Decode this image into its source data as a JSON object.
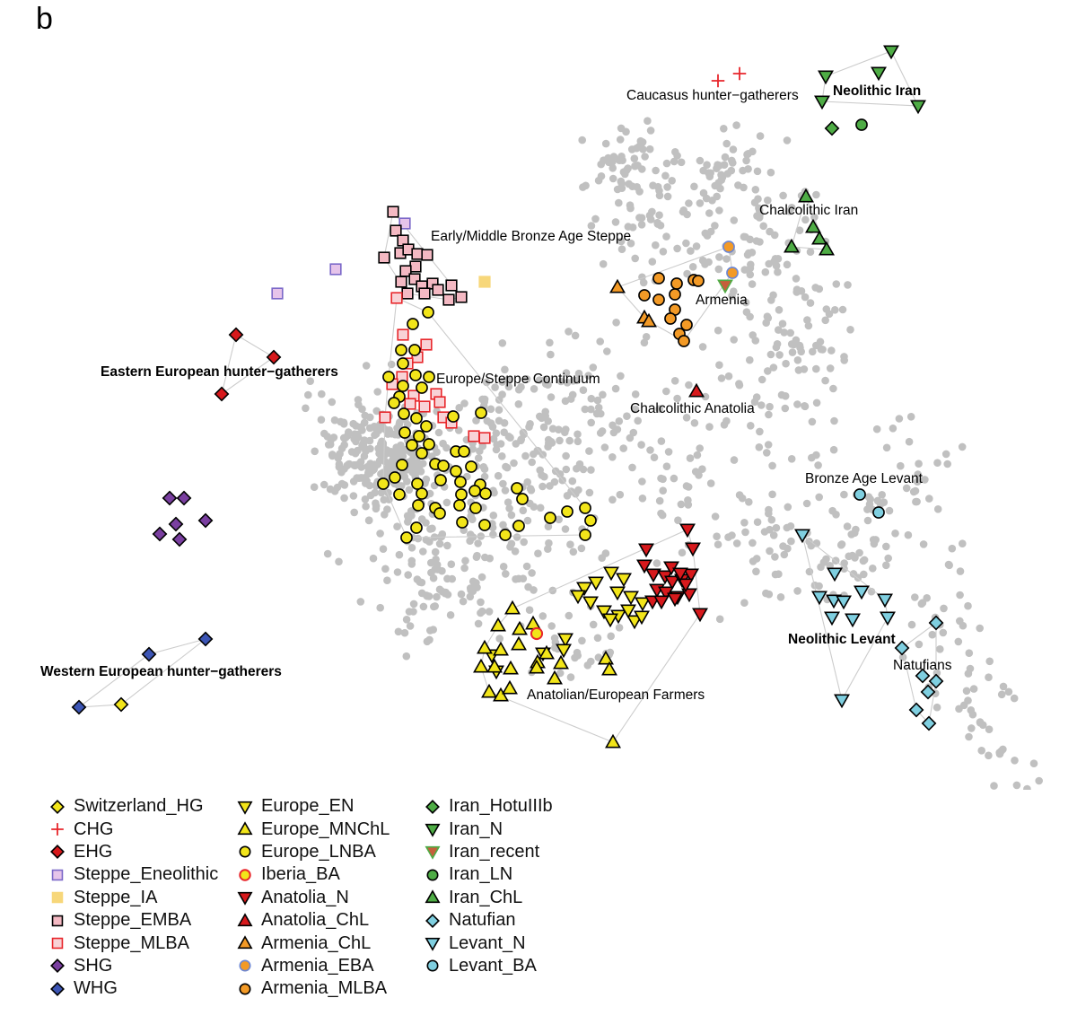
{
  "panel_letter": "b",
  "chart_data": {
    "type": "scatter",
    "title": "",
    "xlabel": "",
    "ylabel": "",
    "grid": false,
    "legend_position": "bottom-left",
    "annotations": [
      {
        "text": "Caucasus hunter−gatherers",
        "bold": false
      },
      {
        "text": "Neolithic Iran",
        "bold": true
      },
      {
        "text": "Chalcolithic Iran",
        "bold": false
      },
      {
        "text": "Early/Middle Bronze Age Steppe",
        "bold": false
      },
      {
        "text": "Armenia",
        "bold": false
      },
      {
        "text": "Eastern European hunter−gatherers",
        "bold": true
      },
      {
        "text": "Europe/Steppe Continuum",
        "bold": false
      },
      {
        "text": "Chalcolithic Anatolia",
        "bold": false
      },
      {
        "text": "Bronze Age Levant",
        "bold": false
      },
      {
        "text": "Neolithic Levant",
        "bold": true
      },
      {
        "text": "Natufians",
        "bold": false
      },
      {
        "text": "Western European hunter−gatherers",
        "bold": true
      },
      {
        "text": "Anatolian/European Farmers",
        "bold": false
      }
    ],
    "series": [
      {
        "name": "Switzerland_HG",
        "shape": "diamond",
        "fill": "#f2e51a",
        "points": [
          [
            135,
            785
          ]
        ]
      },
      {
        "name": "CHG",
        "shape": "plus",
        "fill": "#e8262b",
        "points": [
          [
            800,
            90
          ],
          [
            824,
            82
          ]
        ]
      },
      {
        "name": "EHG",
        "shape": "diamond",
        "fill": "#d7191c",
        "points": [
          [
            263,
            373
          ],
          [
            305,
            398
          ],
          [
            247,
            439
          ]
        ]
      },
      {
        "name": "Steppe_Eneolithic",
        "shape": "square-open",
        "fill": "#e6c4ea",
        "stroke": "#7b68c8",
        "points": [
          [
            309,
            327
          ],
          [
            374,
            300
          ],
          [
            451,
            249
          ]
        ]
      },
      {
        "name": "Steppe_IA",
        "shape": "square-open",
        "fill": "#f7d77a",
        "stroke": "#f7d77a",
        "points": [
          [
            540,
            314
          ]
        ]
      },
      {
        "name": "Steppe_EMBA",
        "shape": "square",
        "fill": "#f4b9c3",
        "points": [
          [
            438,
            236
          ],
          [
            441,
            257
          ],
          [
            449,
            268
          ],
          [
            428,
            287
          ],
          [
            446,
            282
          ],
          [
            455,
            278
          ],
          [
            465,
            283
          ],
          [
            476,
            284
          ],
          [
            463,
            297
          ],
          [
            452,
            302
          ],
          [
            447,
            314
          ],
          [
            462,
            311
          ],
          [
            470,
            319
          ],
          [
            482,
            316
          ],
          [
            488,
            323
          ],
          [
            473,
            327
          ],
          [
            454,
            327
          ],
          [
            503,
            318
          ],
          [
            500,
            334
          ],
          [
            514,
            331
          ]
        ]
      },
      {
        "name": "Steppe_MLBA",
        "shape": "square-open",
        "fill": "#f8d2d6",
        "stroke": "#e8262b",
        "points": [
          [
            442,
            332
          ],
          [
            449,
            373
          ],
          [
            475,
            384
          ],
          [
            465,
            398
          ],
          [
            454,
            405
          ],
          [
            448,
            420
          ],
          [
            437,
            428
          ],
          [
            461,
            441
          ],
          [
            457,
            450
          ],
          [
            486,
            439
          ],
          [
            490,
            448
          ],
          [
            473,
            453
          ],
          [
            429,
            465
          ],
          [
            494,
            465
          ],
          [
            503,
            471
          ],
          [
            528,
            486
          ],
          [
            540,
            488
          ]
        ]
      },
      {
        "name": "SHG",
        "shape": "diamond",
        "fill": "#7a3fa0",
        "points": [
          [
            189,
            555
          ],
          [
            205,
            555
          ],
          [
            196,
            584
          ],
          [
            178,
            595
          ],
          [
            200,
            601
          ],
          [
            229,
            580
          ]
        ]
      },
      {
        "name": "WHG",
        "shape": "diamond",
        "fill": "#3c55b5",
        "points": [
          [
            166,
            729
          ],
          [
            229,
            712
          ],
          [
            88,
            788
          ]
        ]
      },
      {
        "name": "Europe_EN",
        "shape": "triangle-down",
        "fill": "#f2e51a",
        "points": [
          [
            681,
            638
          ],
          [
            695,
            645
          ],
          [
            688,
            660
          ],
          [
            703,
            665
          ],
          [
            716,
            672
          ],
          [
            689,
            686
          ],
          [
            707,
            692
          ],
          [
            664,
            649
          ],
          [
            651,
            655
          ],
          [
            644,
            664
          ],
          [
            658,
            671
          ],
          [
            673,
            681
          ],
          [
            680,
            690
          ],
          [
            700,
            680
          ],
          [
            715,
            687
          ],
          [
            630,
            712
          ],
          [
            628,
            724
          ],
          [
            548,
            730
          ],
          [
            553,
            748
          ],
          [
            605,
            728
          ]
        ]
      },
      {
        "name": "Europe_MNChL",
        "shape": "triangle-up",
        "fill": "#f2e51a",
        "points": [
          [
            571,
            678
          ],
          [
            555,
            697
          ],
          [
            578,
            718
          ],
          [
            558,
            724
          ],
          [
            540,
            722
          ],
          [
            536,
            743
          ],
          [
            551,
            743
          ],
          [
            569,
            745
          ],
          [
            599,
            738
          ],
          [
            609,
            728
          ],
          [
            625,
            739
          ],
          [
            618,
            756
          ],
          [
            598,
            744
          ],
          [
            579,
            701
          ],
          [
            594,
            695
          ],
          [
            675,
            734
          ],
          [
            679,
            746
          ],
          [
            545,
            771
          ],
          [
            558,
            775
          ],
          [
            568,
            767
          ],
          [
            683,
            827
          ]
        ]
      },
      {
        "name": "Europe_LNBA",
        "shape": "circle",
        "fill": "#f2e51a",
        "points": [
          [
            477,
            348
          ],
          [
            460,
            361
          ],
          [
            447,
            390
          ],
          [
            462,
            390
          ],
          [
            433,
            420
          ],
          [
            449,
            405
          ],
          [
            449,
            430
          ],
          [
            470,
            432
          ],
          [
            445,
            442
          ],
          [
            463,
            418
          ],
          [
            478,
            420
          ],
          [
            439,
            449
          ],
          [
            450,
            461
          ],
          [
            464,
            466
          ],
          [
            475,
            475
          ],
          [
            451,
            482
          ],
          [
            467,
            486
          ],
          [
            478,
            495
          ],
          [
            459,
            496
          ],
          [
            470,
            505
          ],
          [
            448,
            518
          ],
          [
            485,
            517
          ],
          [
            494,
            519
          ],
          [
            508,
            503
          ],
          [
            517,
            503
          ],
          [
            525,
            520
          ],
          [
            508,
            525
          ],
          [
            513,
            537
          ],
          [
            535,
            540
          ],
          [
            541,
            550
          ],
          [
            529,
            547
          ],
          [
            491,
            535
          ],
          [
            514,
            551
          ],
          [
            512,
            563
          ],
          [
            530,
            566
          ],
          [
            470,
            550
          ],
          [
            465,
            539
          ],
          [
            440,
            532
          ],
          [
            427,
            539
          ],
          [
            445,
            551
          ],
          [
            466,
            563
          ],
          [
            485,
            566
          ],
          [
            490,
            572
          ],
          [
            464,
            588
          ],
          [
            453,
            599
          ],
          [
            515,
            582
          ],
          [
            540,
            585
          ],
          [
            563,
            596
          ],
          [
            578,
            586
          ],
          [
            576,
            544
          ],
          [
            582,
            556
          ],
          [
            613,
            577
          ],
          [
            632,
            570
          ],
          [
            652,
            566
          ],
          [
            658,
            580
          ],
          [
            652,
            596
          ],
          [
            505,
            464
          ],
          [
            536,
            460
          ]
        ]
      },
      {
        "name": "Iberia_BA",
        "shape": "circle-open",
        "fill": "#f2e51a",
        "stroke": "#e8262b",
        "points": [
          [
            598,
            706
          ]
        ]
      },
      {
        "name": "Anatolia_N",
        "shape": "triangle-down",
        "fill": "#d7191c",
        "points": [
          [
            766,
            590
          ],
          [
            772,
            611
          ],
          [
            720,
            612
          ],
          [
            718,
            630
          ],
          [
            728,
            640
          ],
          [
            741,
            642
          ],
          [
            749,
            648
          ],
          [
            760,
            646
          ],
          [
            770,
            640
          ],
          [
            748,
            632
          ],
          [
            732,
            657
          ],
          [
            742,
            660
          ],
          [
            727,
            670
          ],
          [
            737,
            670
          ],
          [
            755,
            665
          ],
          [
            768,
            662
          ],
          [
            752,
            667
          ],
          [
            780,
            684
          ],
          [
            764,
            651
          ],
          [
            758,
            639
          ]
        ]
      },
      {
        "name": "Anatolia_ChL",
        "shape": "triangle-up",
        "fill": "#d7191c",
        "points": [
          [
            776,
            436
          ]
        ]
      },
      {
        "name": "Armenia_ChL",
        "shape": "triangle-up",
        "fill": "#f39a26",
        "points": [
          [
            688,
            320
          ],
          [
            718,
            354
          ],
          [
            723,
            358
          ]
        ]
      },
      {
        "name": "Armenia_EBA",
        "shape": "circle",
        "fill": "#f39a26",
        "stroke": "#6b86d4",
        "points": [
          [
            812,
            275
          ],
          [
            816,
            304
          ]
        ]
      },
      {
        "name": "Armenia_MLBA",
        "shape": "circle",
        "fill": "#f39a26",
        "points": [
          [
            734,
            310
          ],
          [
            754,
            316
          ],
          [
            773,
            312
          ],
          [
            778,
            313
          ],
          [
            718,
            329
          ],
          [
            734,
            334
          ],
          [
            752,
            328
          ],
          [
            752,
            345
          ],
          [
            747,
            355
          ],
          [
            765,
            362
          ],
          [
            757,
            372
          ],
          [
            762,
            380
          ]
        ]
      },
      {
        "name": "Iran_HotuIIIb",
        "shape": "diamond",
        "fill": "#4eac45",
        "points": [
          [
            927,
            143
          ]
        ]
      },
      {
        "name": "Iran_N",
        "shape": "triangle-down",
        "fill": "#4eac45",
        "points": [
          [
            993,
            57
          ],
          [
            979,
            81
          ],
          [
            920,
            85
          ],
          [
            916,
            113
          ],
          [
            1023,
            118
          ]
        ]
      },
      {
        "name": "Iran_recent",
        "shape": "triangle-down",
        "fill": "#c55f3b",
        "stroke": "#4eac45",
        "points": [
          [
            808,
            318
          ]
        ]
      },
      {
        "name": "Iran_LN",
        "shape": "circle",
        "fill": "#4eac45",
        "points": [
          [
            960,
            139
          ]
        ]
      },
      {
        "name": "Iran_ChL",
        "shape": "triangle-up",
        "fill": "#4eac45",
        "points": [
          [
            898,
            219
          ],
          [
            906,
            253
          ],
          [
            882,
            275
          ],
          [
            913,
            266
          ],
          [
            921,
            278
          ]
        ]
      },
      {
        "name": "Natufian",
        "shape": "diamond",
        "fill": "#7fcfe0",
        "points": [
          [
            1043,
            694
          ],
          [
            1005,
            722
          ],
          [
            1028,
            753
          ],
          [
            1043,
            759
          ],
          [
            1034,
            771
          ],
          [
            1021,
            791
          ],
          [
            1035,
            806
          ]
        ]
      },
      {
        "name": "Levant_N",
        "shape": "triangle-down",
        "fill": "#7fcfe0",
        "points": [
          [
            894,
            596
          ],
          [
            930,
            639
          ],
          [
            913,
            665
          ],
          [
            929,
            669
          ],
          [
            940,
            670
          ],
          [
            960,
            659
          ],
          [
            986,
            668
          ],
          [
            927,
            688
          ],
          [
            950,
            690
          ],
          [
            989,
            688
          ],
          [
            938,
            780
          ]
        ]
      },
      {
        "name": "Levant_BA",
        "shape": "circle",
        "fill": "#7fcfe0",
        "points": [
          [
            958,
            551
          ],
          [
            979,
            571
          ]
        ]
      }
    ]
  },
  "legend": {
    "columns": [
      [
        "Switzerland_HG",
        "CHG",
        "EHG",
        "Steppe_Eneolithic",
        "Steppe_IA",
        "Steppe_EMBA",
        "Steppe_MLBA",
        "SHG",
        "WHG"
      ],
      [
        "Europe_EN",
        "Europe_MNChL",
        "Europe_LNBA",
        "Iberia_BA",
        "Anatolia_N",
        "Anatolia_ChL",
        "Armenia_ChL",
        "Armenia_EBA",
        "Armenia_MLBA"
      ],
      [
        "Iran_HotuIIIb",
        "Iran_N",
        "Iran_recent",
        "Iran_LN",
        "Iran_ChL",
        "Natufian",
        "Levant_N",
        "Levant_BA"
      ]
    ]
  },
  "colors": {
    "background_points": "#c0c0c0",
    "hull_lines": "#cccccc",
    "marker_outline": "#000000"
  }
}
